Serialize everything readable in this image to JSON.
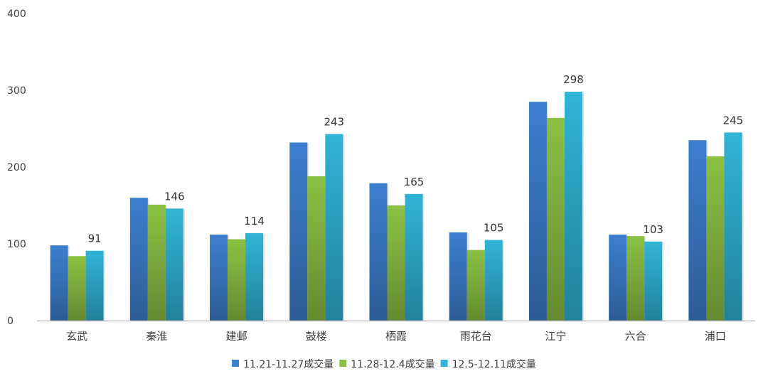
{
  "chart_data": {
    "type": "bar",
    "title": "",
    "xlabel": "",
    "ylabel": "",
    "ylim": [
      0,
      400
    ],
    "yticks": [
      0,
      100,
      200,
      300,
      400
    ],
    "grid": false,
    "legend_position": "bottom",
    "categories": [
      "玄武",
      "秦淮",
      "建邺",
      "鼓楼",
      "栖霞",
      "雨花台",
      "江宁",
      "六合",
      "浦口"
    ],
    "series": [
      {
        "name": "11.21-11.27成交量",
        "color": "#3d7fd0",
        "values": [
          98,
          160,
          112,
          232,
          179,
          115,
          285,
          112,
          235
        ],
        "labels": false
      },
      {
        "name": "11.28-12.4成交量",
        "color": "#8cc044",
        "values": [
          84,
          151,
          106,
          188,
          150,
          92,
          264,
          110,
          214
        ],
        "labels": false
      },
      {
        "name": "12.5-12.11成交量",
        "color": "#31b4d6",
        "values": [
          91,
          146,
          114,
          243,
          165,
          105,
          298,
          103,
          245
        ],
        "labels": true
      }
    ]
  }
}
